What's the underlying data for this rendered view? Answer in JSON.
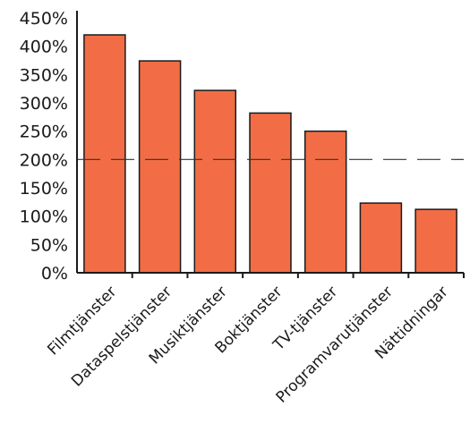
{
  "chart_data": {
    "type": "bar",
    "categories": [
      "Filmtjänster",
      "Dataspelstjänster",
      "Musiktjänster",
      "Boktjänster",
      "TV-tjänster",
      "Programvarutjänster",
      "Nättidningar"
    ],
    "values": [
      420,
      374,
      322,
      282,
      250,
      123,
      112
    ],
    "ylim": [
      0,
      450
    ],
    "yticks": [
      "0%",
      "50%",
      "100%",
      "150%",
      "200%",
      "250%",
      "300%",
      "350%",
      "400%",
      "450%"
    ],
    "reference_line": 200,
    "colors": {
      "bar": "#f26d45",
      "bar_stroke": "#1a1a1a",
      "axis": "#1a1a1a",
      "reference_line": "#333333"
    },
    "grid": false,
    "legend": "none"
  }
}
